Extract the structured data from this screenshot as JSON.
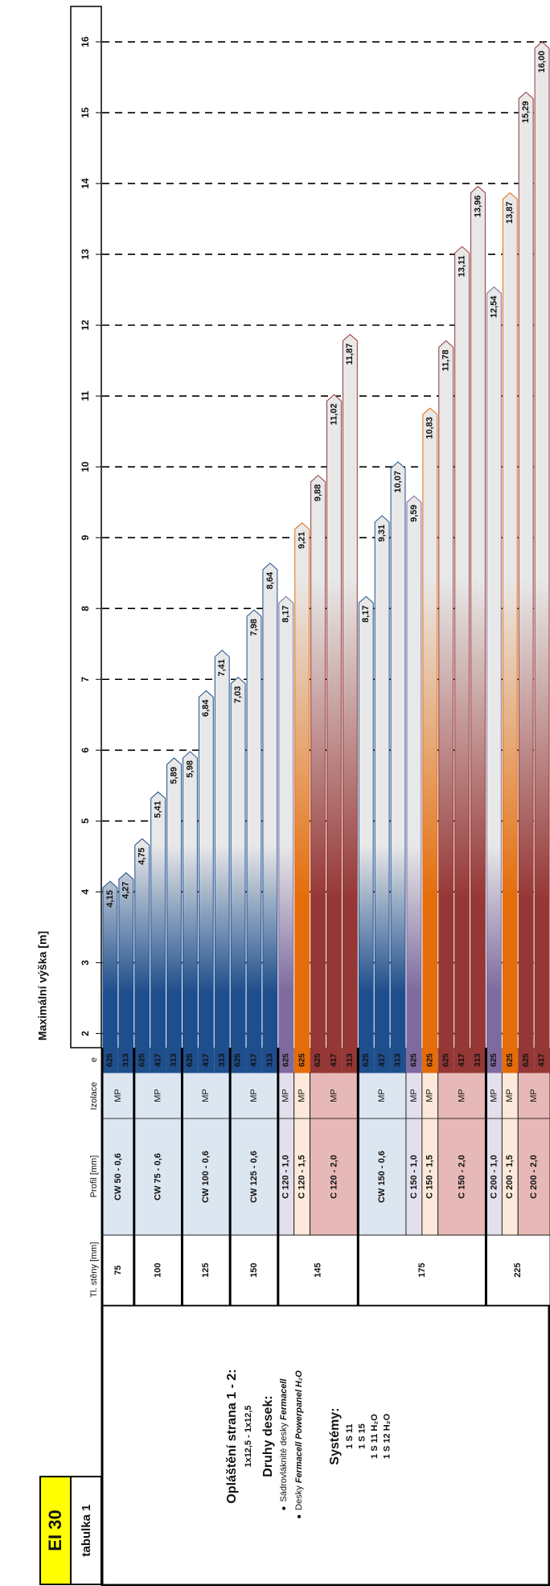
{
  "header": {
    "title": "EI 30",
    "subtitle": "tabulka 1"
  },
  "chart_data": {
    "type": "bar",
    "y_label": "Maximální výška [m]",
    "ylim": [
      1.8,
      16.5
    ],
    "yticks": [
      2,
      3,
      4,
      5,
      6,
      7,
      8,
      9,
      10,
      11,
      12,
      13,
      14,
      15,
      16
    ],
    "grid": true,
    "columns": {
      "thickness": "Tl. stěny [mm]",
      "profile": "Profil [mm]",
      "insulation": "Izolace",
      "spacing": "e"
    },
    "groups": [
      {
        "thickness": "75",
        "profiles": [
          {
            "name": "CW 50 - 0,6",
            "insulation": "MP",
            "color": "#1f4e8c",
            "cell_color": "#dce6f1",
            "e": [
              625,
              313
            ],
            "values": [
              4.15,
              4.27
            ],
            "value_labels": [
              "4,15",
              "4,27"
            ]
          }
        ]
      },
      {
        "thickness": "100",
        "profiles": [
          {
            "name": "CW 75 - 0,6",
            "insulation": "MP",
            "color": "#1f4e8c",
            "cell_color": "#dce6f1",
            "e": [
              625,
              417,
              313
            ],
            "values": [
              4.75,
              5.41,
              5.89
            ],
            "value_labels": [
              "4,75",
              "5,41",
              "5,89"
            ]
          }
        ]
      },
      {
        "thickness": "125",
        "profiles": [
          {
            "name": "CW 100 - 0,6",
            "insulation": "MP",
            "color": "#1f4e8c",
            "cell_color": "#dce6f1",
            "e": [
              625,
              417,
              313
            ],
            "values": [
              5.98,
              6.84,
              7.41
            ],
            "value_labels": [
              "5,98",
              "6,84",
              "7,41"
            ]
          }
        ]
      },
      {
        "thickness": "150",
        "profiles": [
          {
            "name": "CW 125 - 0,6",
            "insulation": "MP",
            "color": "#1f4e8c",
            "cell_color": "#dce6f1",
            "e": [
              625,
              417,
              313
            ],
            "values": [
              7.03,
              7.98,
              8.64
            ],
            "value_labels": [
              "7,03",
              "7,98",
              "8,64"
            ]
          }
        ]
      },
      {
        "thickness": "145",
        "profiles": [
          {
            "name": "C 120 - 1,0",
            "insulation": "MP",
            "color": "#7e6a9e",
            "cell_color": "#e4dfec",
            "e": [
              625
            ],
            "values": [
              8.17
            ],
            "value_labels": [
              "8,17"
            ]
          },
          {
            "name": "C 120 - 1,5",
            "insulation": "MP",
            "color": "#e46c0a",
            "cell_color": "#fde9d9",
            "e": [
              625
            ],
            "values": [
              9.21
            ],
            "value_labels": [
              "9,21"
            ]
          },
          {
            "name": "C 120 - 2,0",
            "insulation": "MP",
            "color": "#953735",
            "cell_color": "#e6b8b7",
            "e": [
              625,
              417,
              313
            ],
            "values": [
              9.88,
              11.02,
              11.87
            ],
            "value_labels": [
              "9,88",
              "11,02",
              "11,87"
            ]
          }
        ]
      },
      {
        "thickness": "175",
        "profiles": [
          {
            "name": "CW 150 - 0,6",
            "insulation": "MP",
            "color": "#1f4e8c",
            "cell_color": "#dce6f1",
            "e": [
              625,
              417,
              313
            ],
            "values": [
              8.17,
              9.31,
              10.07
            ],
            "value_labels": [
              "8,17",
              "9,31",
              "10,07"
            ]
          },
          {
            "name": "C 150 - 1,0",
            "insulation": "MP",
            "color": "#7e6a9e",
            "cell_color": "#e4dfec",
            "e": [
              625
            ],
            "values": [
              9.59
            ],
            "value_labels": [
              "9,59"
            ]
          },
          {
            "name": "C 150 - 1,5",
            "insulation": "MP",
            "color": "#e46c0a",
            "cell_color": "#fde9d9",
            "e": [
              625
            ],
            "values": [
              10.83
            ],
            "value_labels": [
              "10,83"
            ]
          },
          {
            "name": "C 150 - 2,0",
            "insulation": "MP",
            "color": "#953735",
            "cell_color": "#e6b8b7",
            "e": [
              625,
              417,
              313
            ],
            "values": [
              11.78,
              13.11,
              13.96
            ],
            "value_labels": [
              "11,78",
              "13,11",
              "13,96"
            ]
          }
        ]
      },
      {
        "thickness": "225",
        "profiles": [
          {
            "name": "C 200 - 1,0",
            "insulation": "MP",
            "color": "#7e6a9e",
            "cell_color": "#e4dfec",
            "e": [
              625
            ],
            "values": [
              12.54
            ],
            "value_labels": [
              "12,54"
            ]
          },
          {
            "name": "C 200 - 1,5",
            "insulation": "MP",
            "color": "#e46c0a",
            "cell_color": "#fde9d9",
            "e": [
              625
            ],
            "values": [
              13.87
            ],
            "value_labels": [
              "13,87"
            ]
          },
          {
            "name": "C 200 - 2,0",
            "insulation": "MP",
            "color": "#953735",
            "cell_color": "#e6b8b7",
            "e": [
              625,
              417
            ],
            "values": [
              15.29,
              16.0
            ],
            "value_labels": [
              "15,29",
              "16,00"
            ]
          }
        ]
      }
    ]
  },
  "description": {
    "cladding_title": "Opláštění strana 1 - 2:",
    "cladding": "1x12,5 - 1x12,5",
    "boards_title": "Druhy desek:",
    "boards": [
      {
        "prefix": "Sádrovláknité desky",
        "brand": "Fermacell"
      },
      {
        "prefix": "Desky",
        "brand": "Fermacell Powerpanel H₂O"
      }
    ],
    "systems_title": "Systémy:",
    "systems": [
      "1 S 11",
      "1 S 15",
      "1 S 11 H₂O",
      "1 S 12 H₂O"
    ]
  }
}
